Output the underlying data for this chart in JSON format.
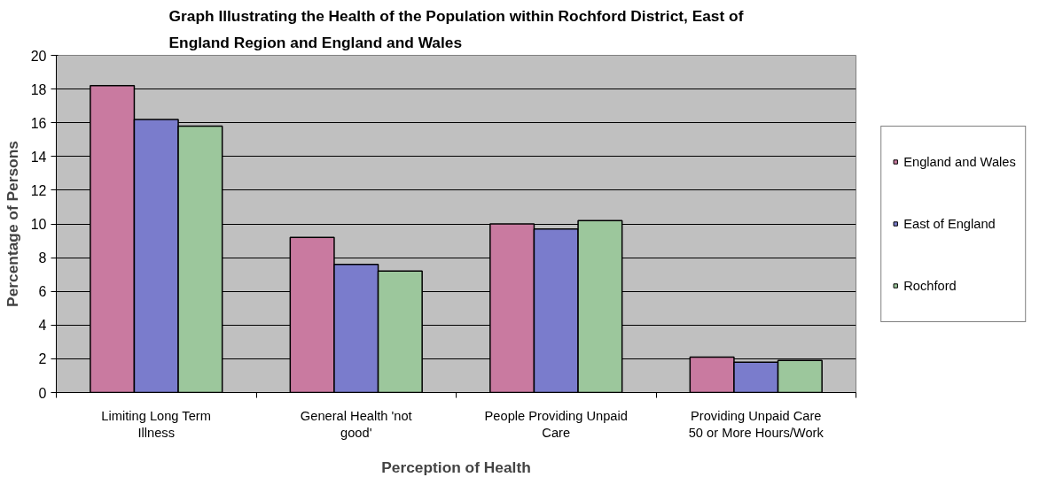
{
  "chart_data": {
    "type": "bar",
    "title": "Graph Illustrating the Health of the Population within Rochford District, East of England Region and England and Wales",
    "xlabel": "Perception of Health",
    "ylabel": "Percentage of Persons",
    "categories": [
      "Limiting Long Term Illness",
      "General Health 'not good'",
      "People Providing Unpaid Care",
      "Providing Unpaid Care 50 or More Hours/Work"
    ],
    "series": [
      {
        "name": "England and Wales",
        "color": "#c97aa0",
        "values": [
          18.2,
          9.2,
          10.0,
          2.1
        ]
      },
      {
        "name": "East of England",
        "color": "#7a7ccc",
        "values": [
          16.2,
          7.6,
          9.7,
          1.8
        ]
      },
      {
        "name": "Rochford",
        "color": "#9cc79c",
        "values": [
          15.8,
          7.2,
          10.2,
          1.9
        ]
      }
    ],
    "ylim": [
      0,
      20
    ],
    "yticks": [
      0,
      2,
      4,
      6,
      8,
      10,
      12,
      14,
      16,
      18,
      20
    ],
    "grid": "y",
    "legend": "right"
  }
}
